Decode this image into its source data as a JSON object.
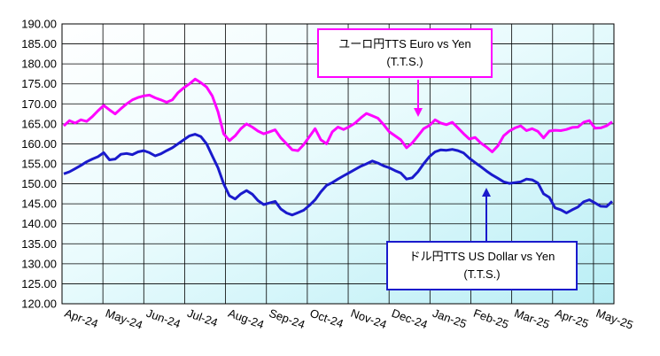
{
  "chart_data": {
    "type": "line",
    "title": "",
    "xlabel": "",
    "ylabel": "",
    "ylim": [
      120,
      190
    ],
    "yticks": [
      "190.00",
      "185.00",
      "180.00",
      "175.00",
      "170.00",
      "165.00",
      "160.00",
      "155.00",
      "150.00",
      "145.00",
      "140.00",
      "135.00",
      "130.00",
      "125.00",
      "120.00"
    ],
    "xticks": [
      "Apr-24",
      "May-24",
      "Jun-24",
      "Jul-24",
      "Aug-24",
      "Sep-24",
      "Oct-24",
      "Nov-24",
      "Dec-24",
      "Jan-25",
      "Feb-25",
      "Mar-25",
      "Apr-25",
      "May-25"
    ],
    "grid": true,
    "colors": {
      "euro": "#ff00ff",
      "usd": "#1a1acc",
      "frame": "#000000"
    },
    "series": [
      {
        "key": "euro",
        "values": [
          164.5,
          165.8,
          165.2,
          166.0,
          165.6,
          166.8,
          168.3,
          169.6,
          168.5,
          167.5,
          168.8,
          170.0,
          171.0,
          171.6,
          172.0,
          172.2,
          171.5,
          171.0,
          170.4,
          171.0,
          172.8,
          174.0,
          175.0,
          176.2,
          175.3,
          174.2,
          172.0,
          168.0,
          162.5,
          160.8,
          162.0,
          163.8,
          165.0,
          164.2,
          163.2,
          162.5,
          163.0,
          163.5,
          161.5,
          160.0,
          158.5,
          158.3,
          159.8,
          161.8,
          163.8,
          161.0,
          160.0,
          163.0,
          164.2,
          163.6,
          164.3,
          165.2,
          166.5,
          167.6,
          167.0,
          166.4,
          164.8,
          163.0,
          162.0,
          161.0,
          159.0,
          160.2,
          162.0,
          163.8,
          164.6,
          166.0,
          165.2,
          164.8,
          165.4,
          164.0,
          162.5,
          161.2,
          161.6,
          160.2,
          159.2,
          158.0,
          159.5,
          162.0,
          163.2,
          164.0,
          164.5,
          163.3,
          163.8,
          163.1,
          161.5,
          163.2,
          163.4,
          163.3,
          163.6,
          164.1,
          164.2,
          165.4,
          165.8,
          163.9,
          164.0,
          164.5,
          165.5
        ]
      },
      {
        "key": "usd",
        "values": [
          152.5,
          153.0,
          153.8,
          154.6,
          155.5,
          156.2,
          156.8,
          157.8,
          156.0,
          156.2,
          157.4,
          157.6,
          157.3,
          158.0,
          158.3,
          157.8,
          157.0,
          157.5,
          158.3,
          159.0,
          160.0,
          161.0,
          162.0,
          162.4,
          161.8,
          160.0,
          157.0,
          154.0,
          150.0,
          147.0,
          146.2,
          147.5,
          148.3,
          147.4,
          145.8,
          144.8,
          145.2,
          145.6,
          143.7,
          142.7,
          142.2,
          142.8,
          143.4,
          144.6,
          146.0,
          148.0,
          149.6,
          150.3,
          151.2,
          152.0,
          152.8,
          153.6,
          154.4,
          155.0,
          155.7,
          155.2,
          154.5,
          154.0,
          153.3,
          152.7,
          151.2,
          151.5,
          153.0,
          155.0,
          156.8,
          158.0,
          158.5,
          158.4,
          158.6,
          158.3,
          157.7,
          156.4,
          155.3,
          154.3,
          153.2,
          152.2,
          151.4,
          150.5,
          150.1,
          150.3,
          150.5,
          151.2,
          151.0,
          150.2,
          147.5,
          146.6,
          144.0,
          143.5,
          142.7,
          143.5,
          144.2,
          145.5,
          146.0,
          145.2,
          144.4,
          144.3,
          145.6
        ]
      }
    ],
    "annotations": [
      {
        "key": "euro",
        "line1": "ユーロ円TTS Euro vs Yen",
        "line2": "(T.T.S.)"
      },
      {
        "key": "usd",
        "line1": "ドル円TTS  US Dollar vs Yen",
        "line2": "(T.T.S.)"
      }
    ]
  }
}
